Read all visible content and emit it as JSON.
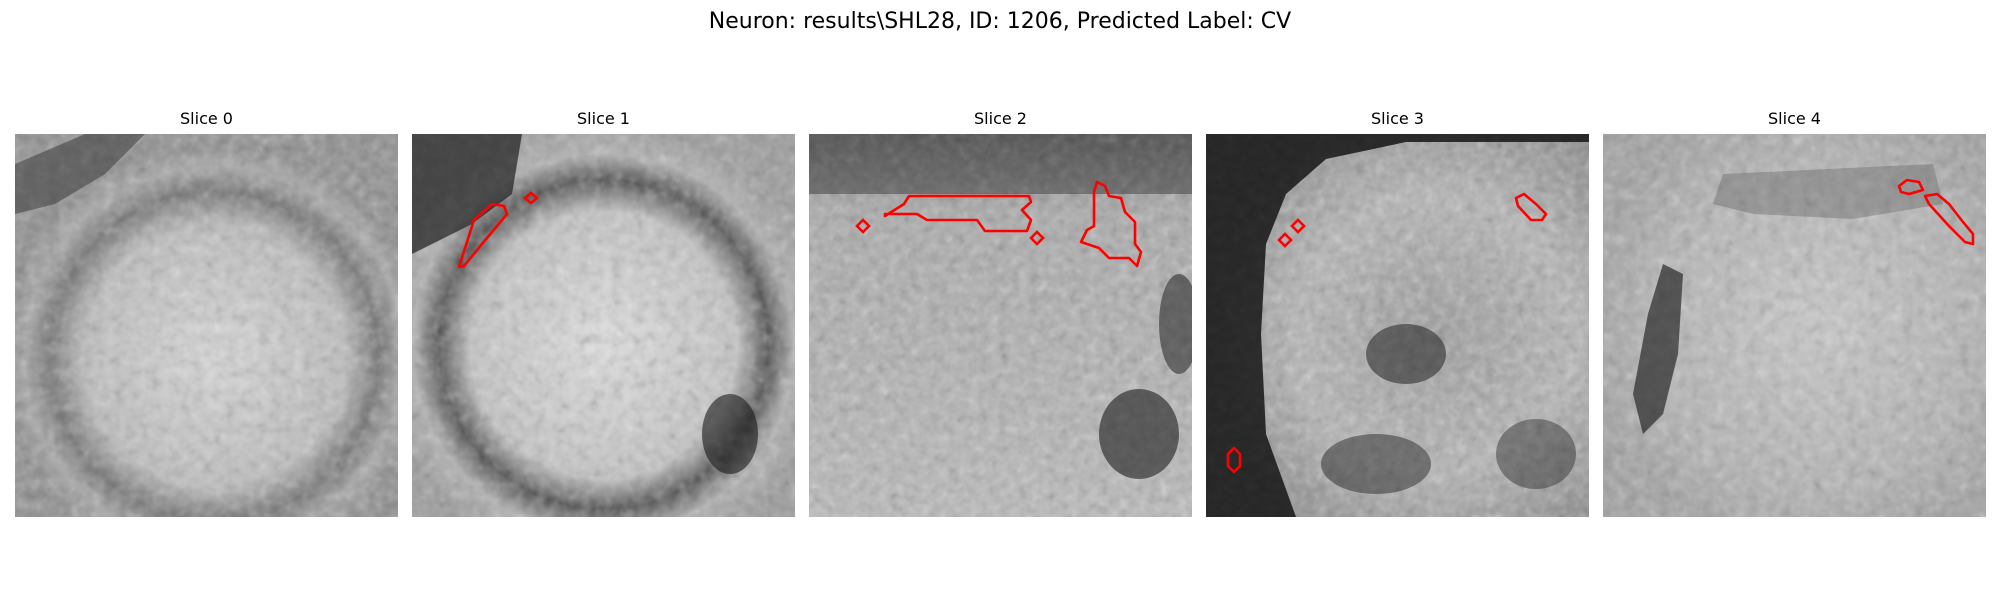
{
  "figure": {
    "title": "Neuron: results\\SHL28, ID: 1206, Predicted Label: CV"
  },
  "panels": [
    {
      "title": "Slice 0"
    },
    {
      "title": "Slice 1"
    },
    {
      "title": "Slice 2"
    },
    {
      "title": "Slice 3"
    },
    {
      "title": "Slice 4"
    }
  ],
  "colors": {
    "contour": "#ff0000",
    "background": "#ffffff"
  }
}
